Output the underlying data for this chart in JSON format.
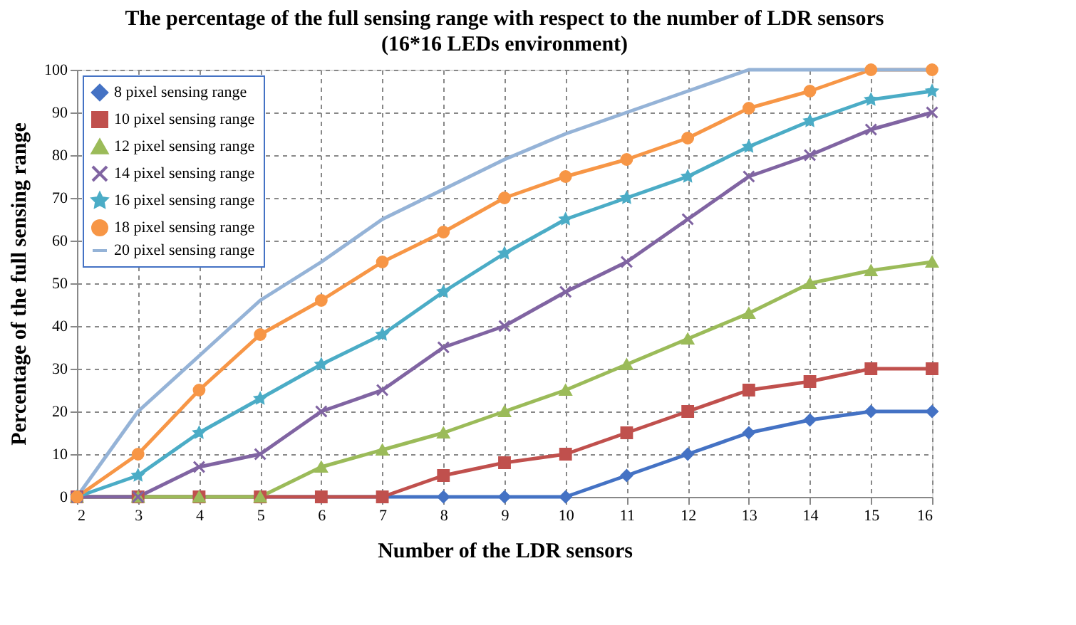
{
  "chart_data": {
    "type": "line",
    "title": "The percentage of  the full sensing range with respect to the number of LDR sensors",
    "subtitle": "(16*16 LEDs environment)",
    "xlabel": "Number of the LDR sensors",
    "ylabel": "Percentage of the full sensing range",
    "x": [
      2,
      3,
      4,
      5,
      6,
      7,
      8,
      9,
      10,
      11,
      12,
      13,
      14,
      15,
      16
    ],
    "xlim": [
      2,
      16
    ],
    "xticks": [
      2,
      3,
      4,
      5,
      6,
      7,
      8,
      9,
      10,
      11,
      12,
      13,
      14,
      15,
      16
    ],
    "ylim": [
      0,
      100
    ],
    "yticks": [
      0,
      10,
      20,
      30,
      40,
      50,
      60,
      70,
      80,
      90,
      100
    ],
    "grid": true,
    "legend": "top left",
    "line_style": "solid",
    "series": [
      {
        "name": "8 pixel sensing range",
        "color": "#4472c4",
        "marker": "diamond",
        "values": [
          0,
          0,
          0,
          0,
          0,
          0,
          0,
          0,
          0,
          5,
          10,
          15,
          18,
          20,
          20
        ]
      },
      {
        "name": "10 pixel sensing range",
        "color": "#c0504d",
        "marker": "square",
        "values": [
          0,
          0,
          0,
          0,
          0,
          0,
          5,
          8,
          10,
          15,
          20,
          25,
          27,
          30,
          30
        ]
      },
      {
        "name": "12 pixel sensing range",
        "color": "#9bbb59",
        "marker": "triangle",
        "values": [
          0,
          0,
          0,
          0,
          7,
          11,
          15,
          20,
          25,
          31,
          37,
          43,
          50,
          53,
          55
        ]
      },
      {
        "name": "14 pixel sensing range",
        "color": "#8064a2",
        "marker": "cross",
        "values": [
          0,
          0,
          7,
          10,
          20,
          25,
          35,
          40,
          48,
          55,
          65,
          75,
          80,
          86,
          90
        ]
      },
      {
        "name": "16 pixel sensing range",
        "color": "#4bacc6",
        "marker": "star",
        "values": [
          0,
          5,
          15,
          23,
          31,
          38,
          48,
          57,
          65,
          70,
          75,
          82,
          88,
          93,
          95
        ]
      },
      {
        "name": "18 pixel sensing range",
        "color": "#f79646",
        "marker": "circle",
        "values": [
          0,
          10,
          25,
          38,
          46,
          55,
          62,
          70,
          75,
          79,
          84,
          91,
          95,
          100,
          100
        ]
      },
      {
        "name": "20 pixel sensing range",
        "color": "#95b3d7",
        "marker": "none",
        "values": [
          0,
          20,
          33,
          46,
          55,
          65,
          72,
          79,
          85,
          90,
          95,
          100,
          100,
          100,
          100
        ]
      }
    ]
  }
}
